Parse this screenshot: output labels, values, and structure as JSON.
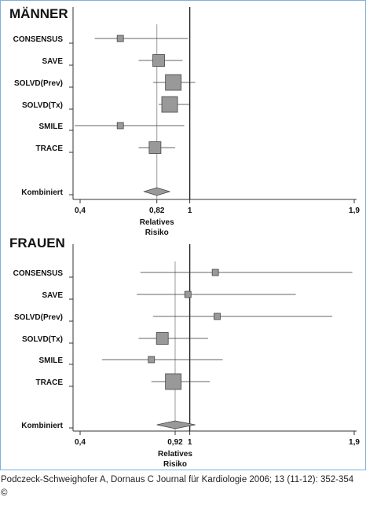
{
  "chart_data": [
    {
      "type": "forest",
      "title": "MÄNNER",
      "xlabel": "Relatives Risiko",
      "x_ticks": [
        0.4,
        0.82,
        1,
        1.9
      ],
      "x_tick_labels": [
        "0,4",
        "0,82",
        "1",
        "1,9"
      ],
      "xlim": [
        0.4,
        1.9
      ],
      "reference_line": 1,
      "pooled_line": 0.82,
      "studies": [
        {
          "name": "CONSENSUS",
          "estimate": 0.62,
          "ci": [
            0.48,
            0.99
          ],
          "weight": "small"
        },
        {
          "name": "SAVE",
          "estimate": 0.83,
          "ci": [
            0.72,
            0.96
          ],
          "weight": "medium"
        },
        {
          "name": "SOLVD(Prev)",
          "estimate": 0.91,
          "ci": [
            0.8,
            1.03
          ],
          "weight": "large"
        },
        {
          "name": "SOLVD(Tx)",
          "estimate": 0.89,
          "ci": [
            0.83,
            1.0
          ],
          "weight": "large"
        },
        {
          "name": "SMILE",
          "estimate": 0.62,
          "ci": [
            0.37,
            0.97
          ],
          "weight": "small"
        },
        {
          "name": "TRACE",
          "estimate": 0.81,
          "ci": [
            0.72,
            0.92
          ],
          "weight": "medium"
        }
      ],
      "pooled": {
        "name": "Kombiniert",
        "estimate": 0.82,
        "ci": [
          0.75,
          0.89
        ]
      }
    },
    {
      "type": "forest",
      "title": "FRAUEN",
      "xlabel": "Relatives Risiko",
      "x_ticks": [
        0.4,
        0.92,
        1,
        1.9
      ],
      "x_tick_labels": [
        "0,4",
        "0,92",
        "1",
        "1,9"
      ],
      "xlim": [
        0.4,
        1.9
      ],
      "reference_line": 1,
      "pooled_line": 0.92,
      "studies": [
        {
          "name": "CONSENSUS",
          "estimate": 1.14,
          "ci": [
            0.73,
            1.89
          ],
          "weight": "small"
        },
        {
          "name": "SAVE",
          "estimate": 0.99,
          "ci": [
            0.71,
            1.58
          ],
          "weight": "small"
        },
        {
          "name": "SOLVD(Prev)",
          "estimate": 1.15,
          "ci": [
            0.8,
            1.78
          ],
          "weight": "small"
        },
        {
          "name": "SOLVD(Tx)",
          "estimate": 0.85,
          "ci": [
            0.72,
            1.1
          ],
          "weight": "medium"
        },
        {
          "name": "SMILE",
          "estimate": 0.79,
          "ci": [
            0.52,
            1.18
          ],
          "weight": "small"
        },
        {
          "name": "TRACE",
          "estimate": 0.91,
          "ci": [
            0.79,
            1.11
          ],
          "weight": "large"
        }
      ],
      "pooled": {
        "name": "Kombiniert",
        "estimate": 0.92,
        "ci": [
          0.82,
          1.03
        ]
      }
    }
  ],
  "citation": "Podczeck-Schweighofer A, Dornaus C Journal für Kardiologie 2006; 13 (11-12): 352-354 ©"
}
